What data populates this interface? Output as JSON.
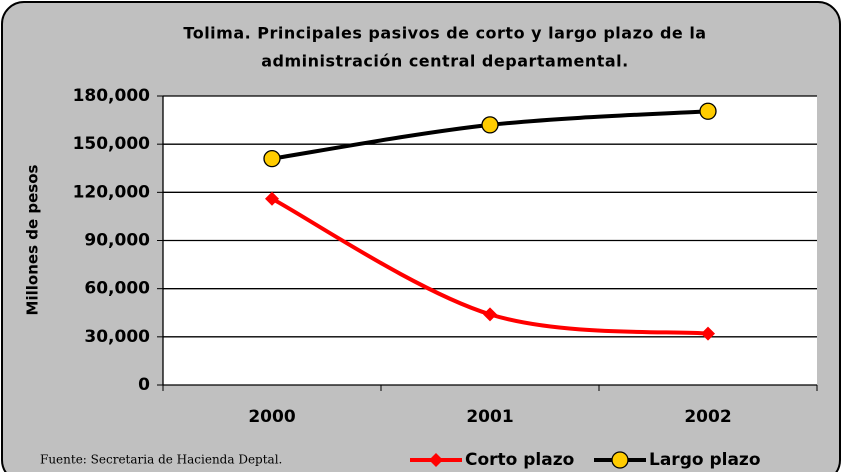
{
  "chart_data": {
    "type": "line",
    "title": [
      "Tolima. Principales pasivos de corto y largo plazo de la",
      "administración central departamental."
    ],
    "y_label": "Millones de pesos",
    "source": "Fuente: Secretaria de Hacienda Deptal.",
    "categories": [
      "2000",
      "2001",
      "2002"
    ],
    "series": [
      {
        "name": "Corto plazo",
        "color": "#ff0000",
        "marker": "diamond",
        "values": [
          116000,
          44000,
          32000
        ]
      },
      {
        "name": "Largo plazo",
        "color": "#000000",
        "marker": "circle",
        "values": [
          141000,
          162000,
          170500
        ]
      }
    ],
    "ylim": [
      0,
      180000
    ],
    "yticks": [
      0,
      {
        "value": 30000,
        "label": "30,000"
      },
      {
        "value": 60000,
        "label": "60,000"
      },
      {
        "value": 90000,
        "label": "90,000"
      },
      {
        "value": 120000,
        "label": "120,000"
      },
      {
        "value": 150000,
        "label": "150,000"
      },
      {
        "value": 180000,
        "label": "180,000"
      }
    ],
    "grid": true
  }
}
